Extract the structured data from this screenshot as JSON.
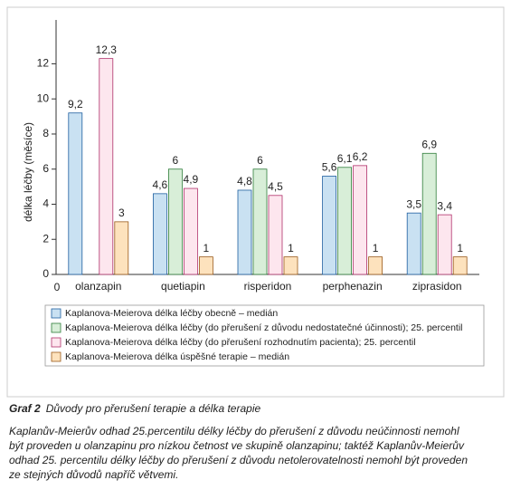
{
  "chart_data": {
    "type": "bar",
    "ylabel": "délka léčby (měsíce)",
    "origin_label": "0",
    "categories": [
      "olanzapin",
      "quetiapin",
      "risperidon",
      "perphenazin",
      "ziprasidon"
    ],
    "series": [
      {
        "name": "Kaplanova-Meierova délka léčby obecně – medián",
        "color": "#c9e1f2",
        "stroke": "#1f5fa0",
        "values": [
          9.2,
          4.6,
          4.8,
          5.6,
          3.5
        ],
        "value_labels": [
          "9,2",
          "4,6",
          "4,8",
          "5,6",
          "3,5"
        ]
      },
      {
        "name": "Kaplanova-Meierova délka léčby (do přerušení z důvodu nedostatečné účinnosti); 25. percentil",
        "color": "#d8eed8",
        "stroke": "#2e7d3a",
        "values": [
          null,
          6,
          6,
          6.1,
          6.9
        ],
        "value_labels": [
          null,
          "6",
          "6",
          "6,1",
          "6,9"
        ]
      },
      {
        "name": "Kaplanova-Meierova délka léčby (do přerušení rozhodnutím pacienta); 25. percentil",
        "color": "#fde6ee",
        "stroke": "#b0306a",
        "values": [
          12.3,
          4.9,
          4.5,
          6.2,
          3.4
        ],
        "value_labels": [
          "12,3",
          "4,9",
          "4,5",
          "6,2",
          "3,4"
        ]
      },
      {
        "name": "Kaplanova-Meierova délka úspěšné terapie – medián",
        "color": "#fde2bd",
        "stroke": "#9a5a1a",
        "values": [
          3,
          1,
          1,
          1,
          1
        ],
        "value_labels": [
          "3",
          "1",
          "1",
          "1",
          "1"
        ]
      }
    ],
    "ylim": [
      0,
      14.5
    ],
    "yticks": [
      0,
      2,
      4,
      6,
      8,
      10,
      12
    ],
    "grid": false
  },
  "caption": {
    "label": "Graf 2",
    "title": "Důvody pro přerušení terapie a délka terapie"
  },
  "note_lines": [
    "Kaplanův-Meierův odhad 25.percentilu délky léčby do přerušení z důvodu neúčinnosti nemohl",
    "být proveden u olanzapinu pro nízkou četnost ve skupině olanzapinu; taktéž Kaplanův-Meierův",
    "odhad 25. percentilu délky léčby do přerušení z důvodu netolerovatelnosti nemohl být proveden",
    "ze stejných důvodů napříč větvemi."
  ]
}
